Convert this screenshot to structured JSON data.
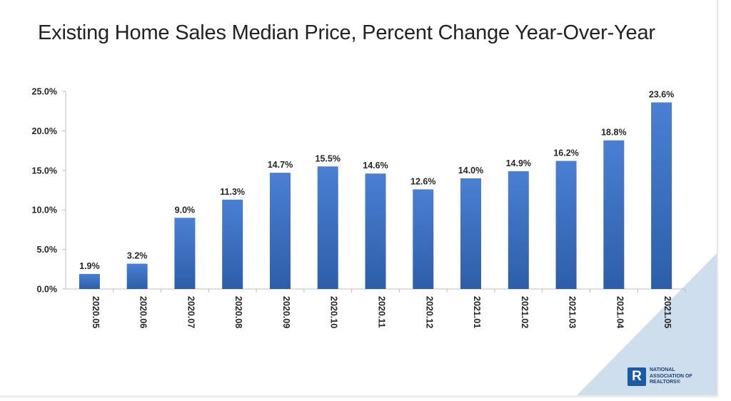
{
  "title": "Existing Home Sales Median Price, Percent Change Year-Over-Year",
  "logo": {
    "letter": "R",
    "lines": [
      "NATIONAL",
      "ASSOCIATION OF",
      "REALTORS®"
    ]
  },
  "colors": {
    "bar_top": "#4a7fd2",
    "bar_bottom": "#2d5ea8",
    "corner_triangle": "#cfdeec"
  },
  "chart_data": {
    "type": "bar",
    "title": "Existing Home Sales Median Price, Percent Change Year-Over-Year",
    "xlabel": "",
    "ylabel": "",
    "ylim": [
      0,
      25
    ],
    "yticks": [
      0,
      5,
      10,
      15,
      20,
      25
    ],
    "ytick_labels": [
      "0.0%",
      "5.0%",
      "10.0%",
      "15.0%",
      "20.0%",
      "25.0%"
    ],
    "grid": false,
    "categories": [
      "2020.05",
      "2020.06",
      "2020.07",
      "2020.08",
      "2020.09",
      "2020.10",
      "2020.11",
      "2020.12",
      "2021.01",
      "2021.02",
      "2021.03",
      "2021.04",
      "2021.05"
    ],
    "values": [
      1.9,
      3.2,
      9.0,
      11.3,
      14.7,
      15.5,
      14.6,
      12.6,
      14.0,
      14.9,
      16.2,
      18.8,
      23.6
    ],
    "data_labels": [
      "1.9%",
      "3.2%",
      "9.0%",
      "11.3%",
      "14.7%",
      "15.5%",
      "14.6%",
      "12.6%",
      "14.0%",
      "14.9%",
      "16.2%",
      "18.8%",
      "23.6%"
    ]
  }
}
